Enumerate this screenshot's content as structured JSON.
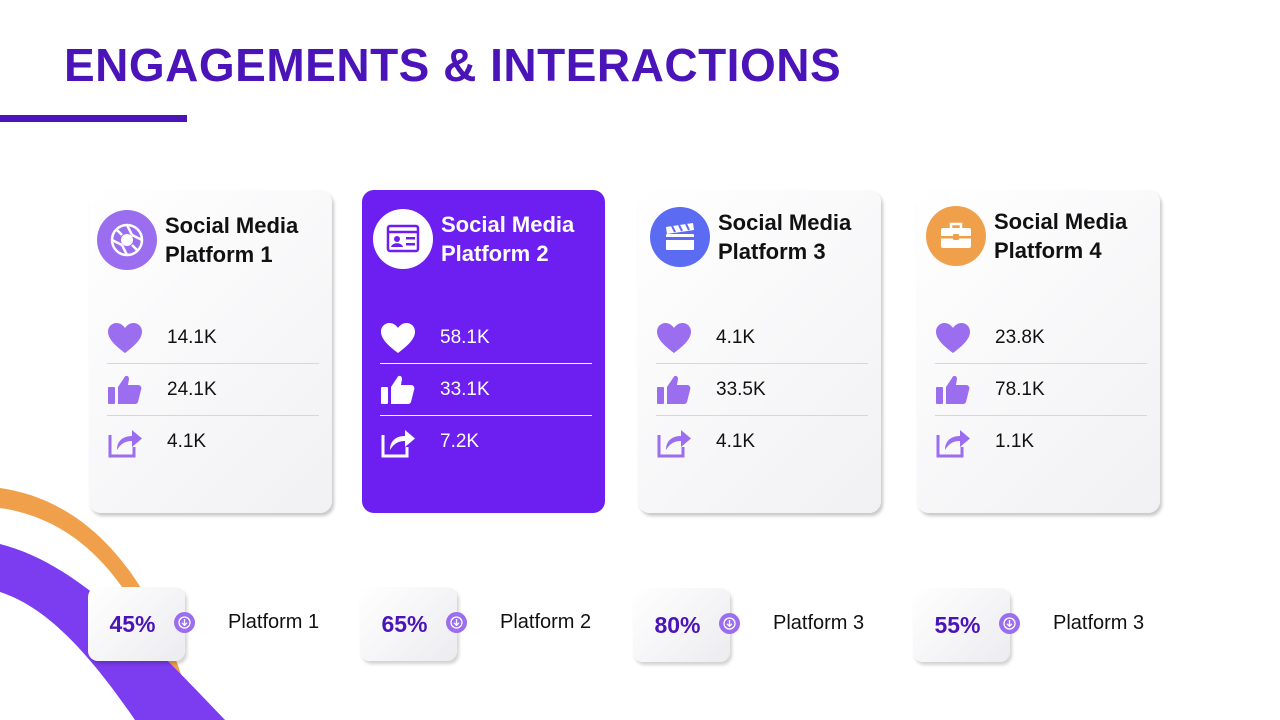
{
  "title": "ENGAGEMENTS & INTERACTIONS",
  "colors": {
    "brand": "#4a14b8",
    "active_card": "#6c1ff0",
    "icon_purple": "#9b6ef0",
    "orange": "#f0a04b",
    "blue": "#5b6cf2"
  },
  "platforms": [
    {
      "name": "Social Media Platform 1",
      "icon": "camera-shutter-icon",
      "likes": "14.1K",
      "thumbs_up": "24.1K",
      "shares": "4.1K"
    },
    {
      "name": "Social Media Platform 2",
      "icon": "video-profile-icon",
      "likes": "58.1K",
      "thumbs_up": "33.1K",
      "shares": "7.2K"
    },
    {
      "name": "Social Media Platform 3",
      "icon": "clapperboard-icon",
      "likes": "4.1K",
      "thumbs_up": "33.5K",
      "shares": "4.1K"
    },
    {
      "name": "Social Media Platform 4",
      "icon": "briefcase-icon",
      "likes": "23.8K",
      "thumbs_up": "78.1K",
      "shares": "1.1K"
    }
  ],
  "stats": [
    {
      "percent": "45%",
      "label": "Platform 1"
    },
    {
      "percent": "65%",
      "label": "Platform 2"
    },
    {
      "percent": "80%",
      "label": "Platform 3"
    },
    {
      "percent": "55%",
      "label": "Platform 3"
    }
  ]
}
